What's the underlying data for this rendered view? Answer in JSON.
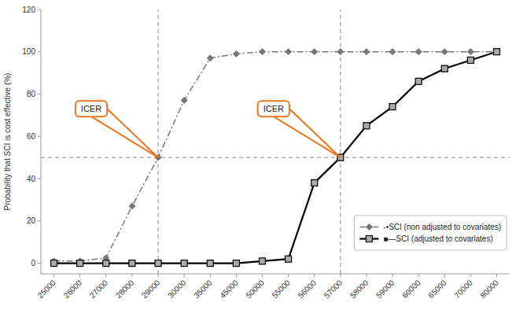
{
  "chart_data": {
    "type": "line",
    "categories": [
      "25000",
      "26000",
      "27000",
      "28000",
      "29000",
      "30000",
      "35000",
      "45000",
      "50000",
      "55000",
      "56000",
      "57000",
      "58000",
      "59000",
      "60000",
      "65000",
      "70000",
      "80000"
    ],
    "series": [
      {
        "name": "-•SCI (non adjusted to covariates)",
        "color": "#777777",
        "marker": "diamond",
        "line_style": "dashdot",
        "values": [
          1,
          1,
          2.5,
          27,
          50,
          77,
          97,
          99,
          100,
          100,
          100,
          100,
          100,
          100,
          100,
          100,
          100,
          100
        ]
      },
      {
        "name": "■—SCI (adjusted to covariates)",
        "color": "#000000",
        "marker": "square",
        "line_style": "solid",
        "values": [
          0,
          0,
          0,
          0,
          0,
          0,
          0,
          0,
          1,
          2,
          38,
          50,
          65,
          74,
          86,
          92,
          96,
          100
        ]
      }
    ],
    "ylabel": "Probability that SCI is cost effective (%)",
    "ylim": [
      -5,
      120
    ],
    "yticks": [
      0,
      20,
      40,
      60,
      80,
      100,
      120
    ],
    "hlines": [
      50
    ],
    "vlines": [
      "29000",
      "57000"
    ],
    "annotations": [
      {
        "text": "ICER",
        "x": "29000",
        "y": 50,
        "color": "#e87722"
      },
      {
        "text": "ICER",
        "x": "57000",
        "y": 50,
        "color": "#e87722"
      }
    ],
    "legend": "lower right",
    "grid": false
  }
}
